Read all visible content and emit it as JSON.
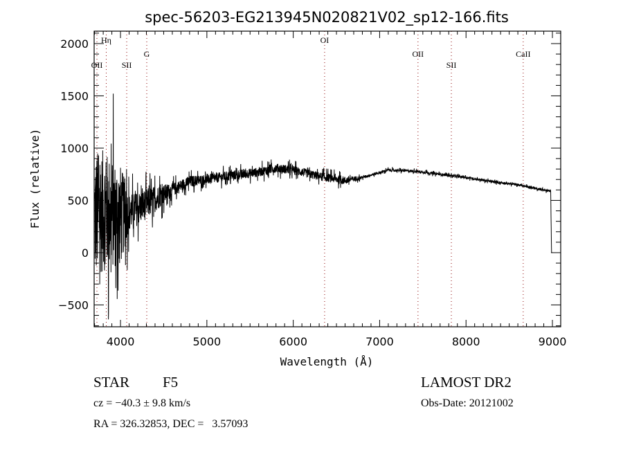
{
  "chart_data": {
    "type": "line",
    "title": "spec-56203-EG213945N020821V02_sp12-166.fits",
    "xlabel": "Wavelength (Å)",
    "ylabel": "Flux (relative)",
    "xlim": [
      3695,
      9096
    ],
    "ylim": [
      -709,
      2119
    ],
    "xticks": [
      4000,
      5000,
      6000,
      7000,
      8000,
      9000
    ],
    "xtick_labels": [
      "4000",
      "5000",
      "6000",
      "7000",
      "8000",
      "9000"
    ],
    "x_minor_step": 100,
    "yticks": [
      -500,
      0,
      500,
      1000,
      1500,
      2000
    ],
    "ytick_labels": [
      "-500",
      "0",
      "500",
      "1000",
      "1500",
      "2000"
    ],
    "y_minor_step": 100,
    "grid": false,
    "line_color": "#000000",
    "marker_line_color": "#8b0000",
    "spectral_lines": [
      {
        "label": "OII",
        "x": 3727,
        "row": 2
      },
      {
        "label": "Hη",
        "x": 3835,
        "row": 0
      },
      {
        "label": "SII",
        "x": 4072,
        "row": 2
      },
      {
        "label": "G",
        "x": 4304,
        "row": 1
      },
      {
        "label": "OI",
        "x": 6363,
        "row": 0
      },
      {
        "label": "OII",
        "x": 7444,
        "row": 1
      },
      {
        "label": "SII",
        "x": 7830,
        "row": 2
      },
      {
        "label": "CaII",
        "x": 8662,
        "row": 1
      }
    ],
    "series": [
      {
        "name": "flux",
        "continuum": [
          [
            3700,
            350
          ],
          [
            3800,
            400
          ],
          [
            4000,
            350
          ],
          [
            4200,
            420
          ],
          [
            4500,
            560
          ],
          [
            4800,
            680
          ],
          [
            5000,
            700
          ],
          [
            5300,
            740
          ],
          [
            5600,
            770
          ],
          [
            5800,
            810
          ],
          [
            6000,
            790
          ],
          [
            6300,
            730
          ],
          [
            6600,
            690
          ],
          [
            6800,
            720
          ],
          [
            7100,
            790
          ],
          [
            7400,
            780
          ],
          [
            7700,
            750
          ],
          [
            8000,
            720
          ],
          [
            8300,
            680
          ],
          [
            8600,
            650
          ],
          [
            8950,
            590
          ],
          [
            8980,
            590
          ],
          [
            8990,
            0
          ],
          [
            9000,
            0
          ]
        ],
        "noise": [
          [
            3700,
            900
          ],
          [
            4000,
            700
          ],
          [
            4100,
            250
          ],
          [
            4350,
            200
          ],
          [
            4600,
            90
          ],
          [
            5000,
            70
          ],
          [
            6600,
            55
          ],
          [
            6800,
            20
          ],
          [
            9000,
            15
          ]
        ]
      }
    ]
  },
  "info": {
    "object_class": "STAR",
    "subclass": "F5",
    "cz": "cz = −40.3 ± 9.8 km/s",
    "coords": "RA = 326.32853, DEC =   3.57093",
    "survey": "LAMOST DR2",
    "obs_date": "Obs-Date: 20121002"
  }
}
